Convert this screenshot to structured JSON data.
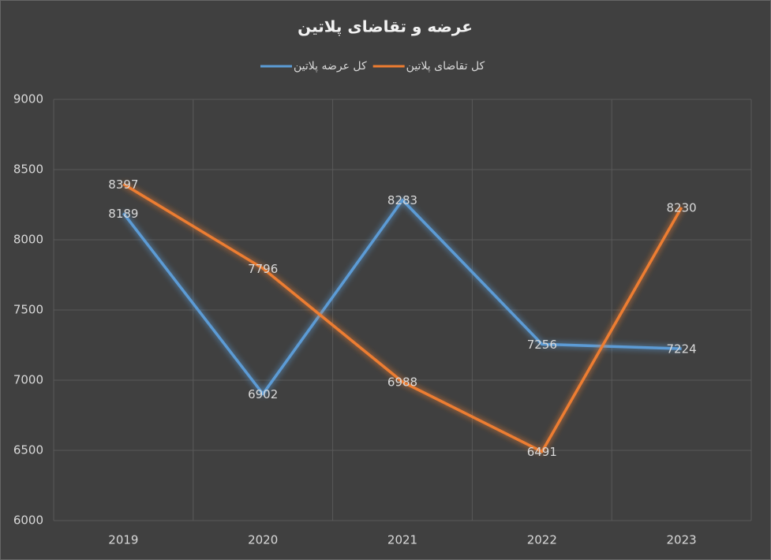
{
  "chart_data": {
    "type": "line",
    "title": "عرضه و تقاضای پلاتین",
    "categories": [
      "2019",
      "2020",
      "2021",
      "2022",
      "2023"
    ],
    "series": [
      {
        "name": "کل عرضه پلاتین",
        "color": "#5b9bd5",
        "values": [
          8189,
          6902,
          8283,
          7256,
          7224
        ]
      },
      {
        "name": "کل تقاضای پلاتین",
        "color": "#ed7d31",
        "values": [
          8397,
          7796,
          6988,
          6491,
          8230
        ]
      }
    ],
    "ylim": [
      6000,
      9000
    ],
    "yticks": [
      6000,
      6500,
      7000,
      7500,
      8000,
      8500,
      9000
    ],
    "grid": true
  }
}
